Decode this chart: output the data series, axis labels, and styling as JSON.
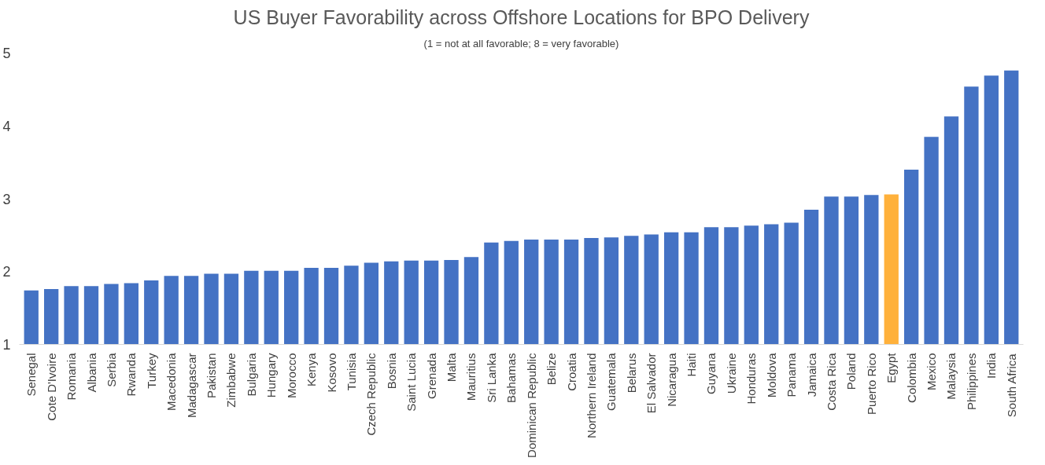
{
  "chart_data": {
    "type": "bar",
    "title": "US Buyer Favorability across Offshore Locations for BPO Delivery",
    "subtitle": "(1 = not at all favorable; 8 = very favorable)",
    "categories": [
      "Senegal",
      "Cote D'Ivoire",
      "Romania",
      "Albania",
      "Serbia",
      "Rwanda",
      "Turkey",
      "Macedonia",
      "Madagascar",
      "Pakistan",
      "Zimbabwe",
      "Bulgaria",
      "Hungary",
      "Morocco",
      "Kenya",
      "Kosovo",
      "Tunisia",
      "Czech Republic",
      "Bosnia",
      "Saint Lucia",
      "Grenada",
      "Malta",
      "Mauritius",
      "Sri Lanka",
      "Bahamas",
      "Dominican Republic",
      "Belize",
      "Croatia",
      "Northern Ireland",
      "Guatemala",
      "Belarus",
      "El Salvador",
      "Nicaragua",
      "Haiti",
      "Guyana",
      "Ukraine",
      "Honduras",
      "Moldova",
      "Panama",
      "Jamaica",
      "Costa Rica",
      "Poland",
      "Puerto Rico",
      "Egypt",
      "Colombia",
      "Mexico",
      "Malaysia",
      "Philippines",
      "India",
      "South Africa"
    ],
    "values": [
      1.74,
      1.76,
      1.8,
      1.8,
      1.83,
      1.84,
      1.88,
      1.94,
      1.94,
      1.97,
      1.97,
      2.01,
      2.01,
      2.01,
      2.05,
      2.05,
      2.08,
      2.12,
      2.14,
      2.15,
      2.15,
      2.16,
      2.2,
      2.4,
      2.42,
      2.44,
      2.44,
      2.44,
      2.46,
      2.47,
      2.49,
      2.51,
      2.54,
      2.54,
      2.61,
      2.61,
      2.63,
      2.65,
      2.67,
      2.85,
      3.03,
      3.03,
      3.05,
      3.06,
      3.4,
      3.85,
      4.13,
      4.54,
      4.69,
      4.76
    ],
    "colors": [
      "#4472c4",
      "#4472c4",
      "#4472c4",
      "#4472c4",
      "#4472c4",
      "#4472c4",
      "#4472c4",
      "#4472c4",
      "#4472c4",
      "#4472c4",
      "#4472c4",
      "#4472c4",
      "#4472c4",
      "#4472c4",
      "#4472c4",
      "#4472c4",
      "#4472c4",
      "#4472c4",
      "#4472c4",
      "#4472c4",
      "#4472c4",
      "#4472c4",
      "#4472c4",
      "#4472c4",
      "#4472c4",
      "#4472c4",
      "#4472c4",
      "#4472c4",
      "#4472c4",
      "#4472c4",
      "#4472c4",
      "#4472c4",
      "#4472c4",
      "#4472c4",
      "#4472c4",
      "#4472c4",
      "#4472c4",
      "#4472c4",
      "#4472c4",
      "#4472c4",
      "#4472c4",
      "#4472c4",
      "#4472c4",
      "#ffb13b",
      "#4472c4",
      "#4472c4",
      "#4472c4",
      "#4472c4",
      "#4472c4",
      "#4472c4"
    ],
    "ylim": [
      1,
      5
    ],
    "yticks": [
      1,
      2,
      3,
      4,
      5
    ],
    "grid": false
  }
}
